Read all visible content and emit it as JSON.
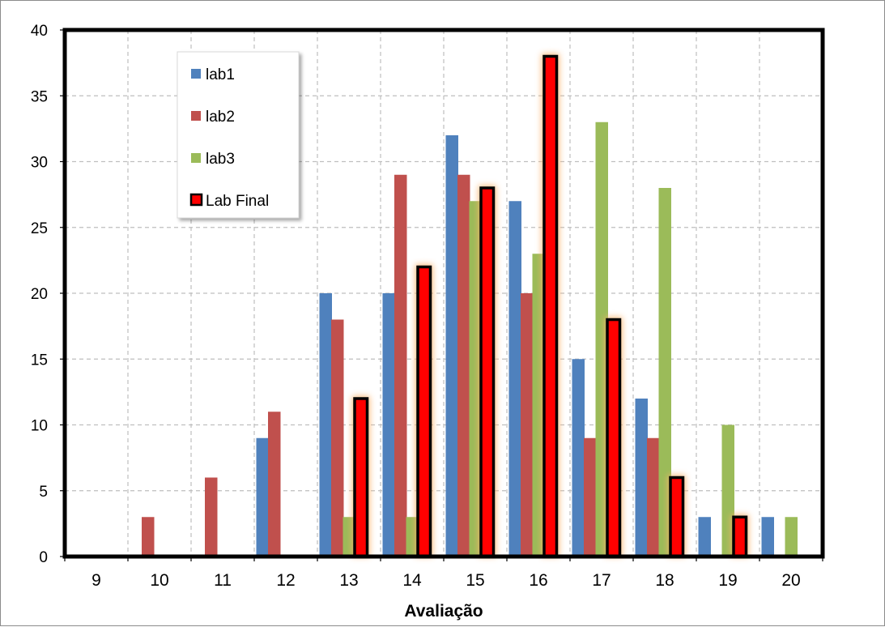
{
  "chart_data": {
    "type": "bar",
    "title": "",
    "xlabel": "Avaliação",
    "ylabel": "",
    "categories": [
      "9",
      "10",
      "11",
      "12",
      "13",
      "14",
      "15",
      "16",
      "17",
      "18",
      "19",
      "20"
    ],
    "ylim": [
      0,
      40
    ],
    "yticks": [
      "0",
      "5",
      "10",
      "15",
      "20",
      "25",
      "30",
      "35",
      "40"
    ],
    "grid": true,
    "legend_position": "top-left",
    "series": [
      {
        "name": "lab1",
        "color": "#4f81bd",
        "values": [
          0,
          0,
          0,
          9,
          20,
          20,
          32,
          27,
          15,
          12,
          3,
          3
        ]
      },
      {
        "name": "lab2",
        "color": "#c0504d",
        "values": [
          0,
          3,
          6,
          11,
          18,
          29,
          29,
          20,
          9,
          9,
          0,
          0
        ]
      },
      {
        "name": "lab3",
        "color": "#9bbb59",
        "values": [
          0,
          0,
          0,
          0,
          3,
          3,
          27,
          23,
          33,
          28,
          10,
          3
        ]
      },
      {
        "name": "Lab Final",
        "color": "#ff0000",
        "values": [
          0,
          0,
          0,
          0,
          12,
          22,
          28,
          38,
          18,
          6,
          3,
          0
        ]
      }
    ]
  }
}
